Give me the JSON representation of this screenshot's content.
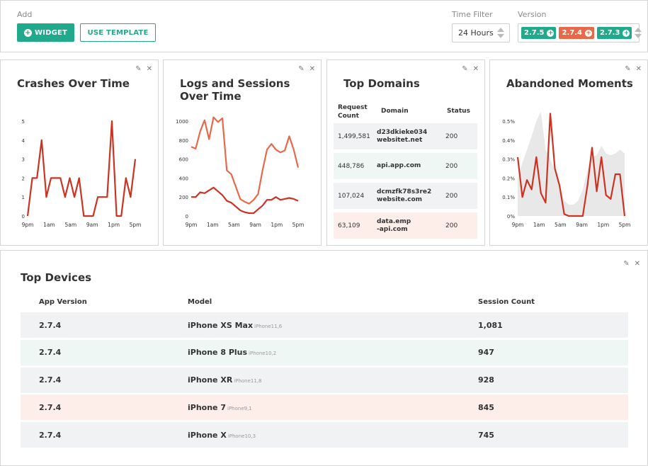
{
  "toolbar": {
    "add_label": "Add",
    "widget_button": "WIDGET",
    "template_button": "USE TEMPLATE",
    "time_filter_label": "Time Filter",
    "time_filter_value": "24 Hours",
    "version_label": "Version",
    "versions": [
      {
        "label": "2.7.5",
        "color": "#20a98a"
      },
      {
        "label": "2.7.4",
        "color": "#e8684a"
      },
      {
        "label": "2.7.3",
        "color": "#20a98a"
      }
    ]
  },
  "colors": {
    "accent": "#20a98a",
    "line_dark": "#cc3322",
    "line_light": "#e8684a",
    "row_gray": "#f1f2f4",
    "row_green": "#eff7f5",
    "row_red": "#fdeeea"
  },
  "widgets": {
    "crashes": {
      "title": "Crashes Over Time"
    },
    "logs": {
      "title_line1": "Logs and Sessions",
      "title_line2": "Over Time"
    },
    "domains": {
      "title": "Top Domains"
    },
    "abandoned": {
      "title": "Abandoned Moments"
    },
    "devices": {
      "title": "Top Devices"
    }
  },
  "chart_data": [
    {
      "type": "line",
      "title": "Crashes Over Time",
      "x_ticks": [
        "9pm",
        "1am",
        "5am",
        "9am",
        "1pm",
        "5pm"
      ],
      "y_ticks": [
        "0",
        "1",
        "2",
        "3",
        "4",
        "5"
      ],
      "ylim": [
        0,
        5
      ],
      "series": [
        {
          "values": [
            0,
            2,
            2,
            4,
            1,
            2,
            2,
            2,
            1,
            2,
            1,
            2,
            0,
            0,
            0,
            1,
            1,
            1,
            5,
            0,
            0,
            2,
            1,
            3
          ],
          "color": "#cc3322"
        }
      ]
    },
    {
      "type": "line",
      "title": "Logs and Sessions Over Time",
      "x_ticks": [
        "9pm",
        "1am",
        "5am",
        "9am",
        "1pm",
        "5pm"
      ],
      "y_ticks": [
        "0",
        "200",
        "400",
        "600",
        "800",
        "1000"
      ],
      "ylim": [
        0,
        1000
      ],
      "series": [
        {
          "values": [
            730,
            710,
            890,
            1010,
            810,
            1040,
            990,
            1030,
            480,
            440,
            310,
            180,
            150,
            130,
            170,
            230,
            480,
            700,
            760,
            700,
            670,
            690,
            840,
            700,
            510
          ],
          "color": "#e8684a"
        },
        {
          "values": [
            200,
            200,
            250,
            240,
            270,
            300,
            260,
            220,
            160,
            140,
            100,
            60,
            40,
            30,
            30,
            70,
            110,
            170,
            170,
            200,
            170,
            180,
            190,
            180,
            160
          ],
          "color": "#cc3322"
        }
      ]
    },
    {
      "type": "line",
      "title": "Abandoned Moments",
      "x_ticks": [
        "9pm",
        "1am",
        "5am",
        "9am",
        "1pm",
        "5pm"
      ],
      "y_ticks": [
        "0%",
        "0.1%",
        "0.2%",
        "0.3%",
        "0.4%",
        "0.5%"
      ],
      "ylim": [
        0,
        0.5
      ],
      "series": [
        {
          "values": [
            0.31,
            0.1,
            0.19,
            0.14,
            0.31,
            0.12,
            0.07,
            0.54,
            0.25,
            0.16,
            0.01,
            0.0,
            0.0,
            0.0,
            0.0,
            0.16,
            0.36,
            0.13,
            0.31,
            0.11,
            0.09,
            0.22,
            0.22,
            0.0
          ],
          "color": "#cc3322"
        }
      ],
      "area": {
        "values": [
          0.2,
          0.28,
          0.35,
          0.42,
          0.5,
          0.55,
          0.35,
          0.3,
          0.24,
          0.16,
          0.08,
          0.06,
          0.06,
          0.08,
          0.14,
          0.24,
          0.31,
          0.32,
          0.37,
          0.33,
          0.32,
          0.33,
          0.35,
          0.33
        ],
        "color": "#e8e8e8"
      }
    }
  ],
  "domains": {
    "headers": [
      "Request Count",
      "Domain",
      "Status"
    ],
    "rows": [
      {
        "count": "1,499,581",
        "domain_line1": "d23dkieke034",
        "domain_line2": "websitet.net",
        "status": "200",
        "tone": "row_gray"
      },
      {
        "count": "448,786",
        "domain_line1": "api.app.com",
        "domain_line2": "",
        "status": "200",
        "tone": "row_green"
      },
      {
        "count": "107,024",
        "domain_line1": "dcmzfk78s3re2",
        "domain_line2": "website.com",
        "status": "200",
        "tone": "row_gray"
      },
      {
        "count": "63,109",
        "domain_line1": "data.emp",
        "domain_line2": "-api.com",
        "status": "200",
        "tone": "row_red"
      }
    ]
  },
  "devices": {
    "headers": [
      "App Version",
      "Model",
      "Session Count"
    ],
    "rows": [
      {
        "version": "2.7.4",
        "model": "iPhone XS Max",
        "model_id": "iPhone11,6",
        "count": "1,081",
        "tone": "row_gray"
      },
      {
        "version": "2.7.4",
        "model": "iPhone 8 Plus",
        "model_id": "iPhone10,2",
        "count": "947",
        "tone": "row_green"
      },
      {
        "version": "2.7.4",
        "model": "iPhone XR",
        "model_id": "iPhone11,8",
        "count": "928",
        "tone": "row_gray"
      },
      {
        "version": "2.7.4",
        "model": "iPhone 7",
        "model_id": "iPhone9,1",
        "count": "845",
        "tone": "row_red"
      },
      {
        "version": "2.7.4",
        "model": "iPhone X",
        "model_id": "iPhone10,3",
        "count": "745",
        "tone": "row_gray"
      }
    ]
  },
  "icons": {
    "edit": "pencil-icon",
    "close": "close-icon",
    "add": "plus-icon"
  }
}
